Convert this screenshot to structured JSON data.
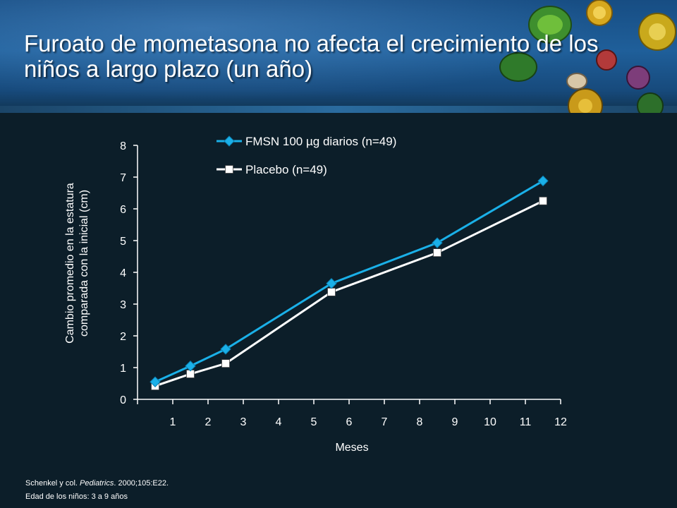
{
  "slide": {
    "title": "Furoato de mometasona no afecta el crecimiento de los niños a largo plazo (un año)",
    "footnote_1_pre": "Schenkel y col. ",
    "footnote_1_journal": "Pediatrics",
    "footnote_1_post": ". 2000;105:E22.",
    "footnote_2": "Edad de los niños: 3 a 9 años"
  },
  "chart_data": {
    "type": "line",
    "title": "",
    "xlabel": "Meses",
    "ylabel_line1": "Cambio promedio en la estatura",
    "ylabel_line2": "comparada con la inicial (cm)",
    "xlim": [
      0,
      12
    ],
    "ylim": [
      0,
      8
    ],
    "x_ticks": [
      1,
      2,
      3,
      4,
      5,
      6,
      7,
      8,
      9,
      10,
      11,
      12
    ],
    "y_ticks": [
      0,
      1,
      2,
      3,
      4,
      5,
      6,
      7,
      8
    ],
    "grid": false,
    "legend_position": "top",
    "series": [
      {
        "name": "FMSN 100 µg diarios (n=49)",
        "color": "#1ab0e8",
        "marker": "diamond",
        "x": [
          0.5,
          1.5,
          2.5,
          5.5,
          8.5,
          11.5
        ],
        "y": [
          0.55,
          1.05,
          1.58,
          3.65,
          4.93,
          6.88
        ]
      },
      {
        "name": "Placebo (n=49)",
        "color": "#ffffff",
        "marker": "square",
        "x": [
          0.5,
          1.5,
          2.5,
          5.5,
          8.5,
          11.5
        ],
        "y": [
          0.42,
          0.8,
          1.13,
          3.38,
          4.62,
          6.25
        ]
      }
    ]
  }
}
